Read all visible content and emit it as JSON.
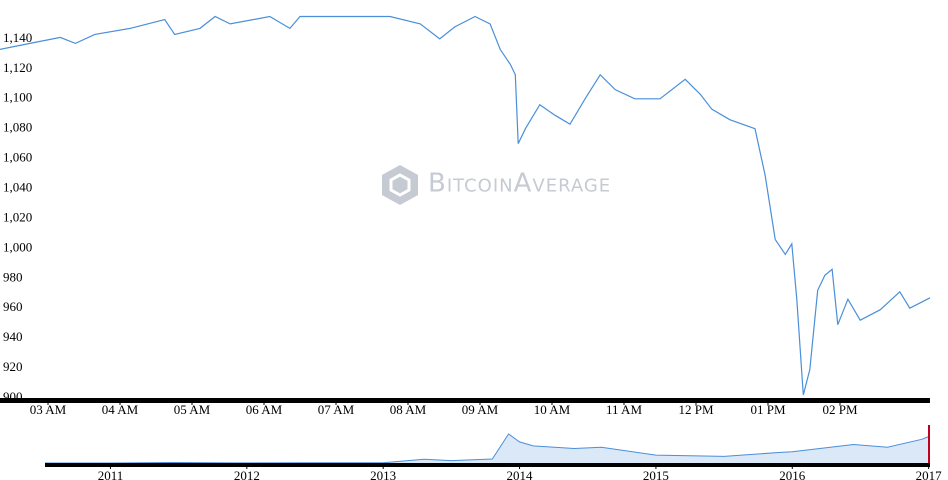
{
  "chart_data": [
    {
      "type": "line",
      "annotation": "BitcoinAverage",
      "color": "#4a8fd9",
      "x": [
        2.33,
        2.75,
        3.17,
        3.38,
        3.65,
        4.14,
        4.62,
        4.76,
        5.11,
        5.32,
        5.53,
        6.08,
        6.36,
        6.5,
        7.06,
        7.75,
        8.17,
        8.44,
        8.65,
        8.93,
        9.14,
        9.28,
        9.42,
        9.49,
        9.53,
        9.63,
        9.83,
        10.04,
        10.25,
        10.46,
        10.67,
        10.88,
        11.15,
        11.5,
        11.85,
        12.06,
        12.22,
        12.47,
        12.82,
        12.96,
        13.1,
        13.24,
        13.33,
        13.4,
        13.49,
        13.58,
        13.69,
        13.79,
        13.89,
        13.97,
        14.11,
        14.28,
        14.56,
        14.83,
        14.97,
        15.25
      ],
      "values": [
        1133,
        1137,
        1141,
        1137,
        1143,
        1147,
        1153,
        1143,
        1147,
        1155,
        1150,
        1155,
        1147,
        1155,
        1155,
        1155,
        1150,
        1140,
        1148,
        1155,
        1150,
        1133,
        1123,
        1116,
        1070,
        1080,
        1096,
        1089,
        1083,
        1100,
        1116,
        1106,
        1100,
        1100,
        1113,
        1103,
        1093,
        1086,
        1080,
        1049,
        1006,
        996,
        1003,
        966,
        902,
        919,
        972,
        982,
        986,
        949,
        966,
        952,
        959,
        971,
        960,
        967
      ],
      "xlim": [
        2.333,
        15.25
      ],
      "ylim": [
        900,
        1166
      ],
      "xticks": [
        {
          "value": 3,
          "label": "03 AM"
        },
        {
          "value": 4,
          "label": "04 AM"
        },
        {
          "value": 5,
          "label": "05 AM"
        },
        {
          "value": 6,
          "label": "06 AM"
        },
        {
          "value": 7,
          "label": "07 AM"
        },
        {
          "value": 8,
          "label": "08 AM"
        },
        {
          "value": 9,
          "label": "09 AM"
        },
        {
          "value": 10,
          "label": "10 AM"
        },
        {
          "value": 11,
          "label": "11 AM"
        },
        {
          "value": 12,
          "label": "12 PM"
        },
        {
          "value": 13,
          "label": "01 PM"
        },
        {
          "value": 14,
          "label": "02 PM"
        }
      ],
      "yticks": [
        900,
        920,
        940,
        960,
        980,
        {
          "value": 1000,
          "label": "1,000"
        },
        {
          "value": 1020,
          "label": "1,020"
        },
        {
          "value": 1040,
          "label": "1,040"
        },
        {
          "value": 1060,
          "label": "1,060"
        },
        {
          "value": 1080,
          "label": "1,080"
        },
        {
          "value": 1100,
          "label": "1,100"
        },
        {
          "value": 1120,
          "label": "1,120"
        },
        {
          "value": 1140,
          "label": "1,140"
        }
      ]
    },
    {
      "type": "area",
      "color": "#4a8fd9",
      "x": [
        2010.52,
        2011.0,
        2011.45,
        2011.9,
        2012.5,
        2013.0,
        2013.3,
        2013.5,
        2013.8,
        2013.92,
        2014.0,
        2014.1,
        2014.4,
        2014.6,
        2015.0,
        2015.5,
        2015.9,
        2016.0,
        2016.45,
        2016.7,
        2016.95,
        2017.0,
        2017.01
      ],
      "values": [
        0.07,
        0.3,
        20,
        3,
        7,
        13,
        140,
        90,
        150,
        1100,
        800,
        650,
        550,
        600,
        300,
        250,
        400,
        430,
        700,
        600,
        900,
        1000,
        980
      ],
      "xlim": [
        2010.52,
        2017.01
      ],
      "ylim": [
        0,
        2200
      ],
      "xticks": [
        2011,
        2012,
        2013,
        2014,
        2015,
        2016,
        2017
      ]
    }
  ]
}
